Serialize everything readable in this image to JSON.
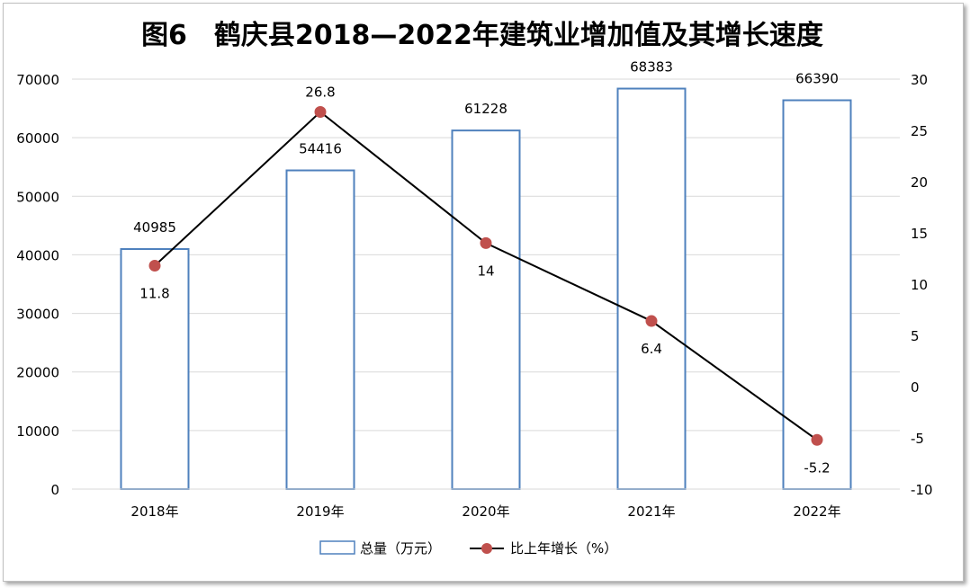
{
  "chart_data": {
    "type": "bar",
    "title": "图6　鹤庆县2018—2022年建筑业增加值及其增长速度",
    "categories": [
      "2018年",
      "2019年",
      "2020年",
      "2021年",
      "2022年"
    ],
    "series": [
      {
        "name": "总量（万元）",
        "type": "bar",
        "axis": "left",
        "values": [
          40985,
          54416,
          61228,
          68383,
          66390
        ],
        "labels": [
          "40985",
          "54416",
          "61228",
          "68383",
          "66390"
        ],
        "color": "#4f81bd"
      },
      {
        "name": "比上年增长（%）",
        "type": "line",
        "axis": "right",
        "values": [
          11.8,
          26.8,
          14,
          6.4,
          -5.2
        ],
        "labels": [
          "11.8",
          "26.8",
          "14",
          "6.4",
          "-5.2"
        ],
        "color": "#000000",
        "marker_color": "#c0504d"
      }
    ],
    "y_left": {
      "range": [
        0,
        70000
      ],
      "ticks": [
        "0",
        "10000",
        "20000",
        "30000",
        "40000",
        "50000",
        "60000",
        "70000"
      ]
    },
    "y_right": {
      "range": [
        -10,
        30
      ],
      "ticks": [
        "-10",
        "-5",
        "0",
        "5",
        "10",
        "15",
        "20",
        "25",
        "30"
      ]
    },
    "grid": true,
    "legend": "bottom"
  }
}
